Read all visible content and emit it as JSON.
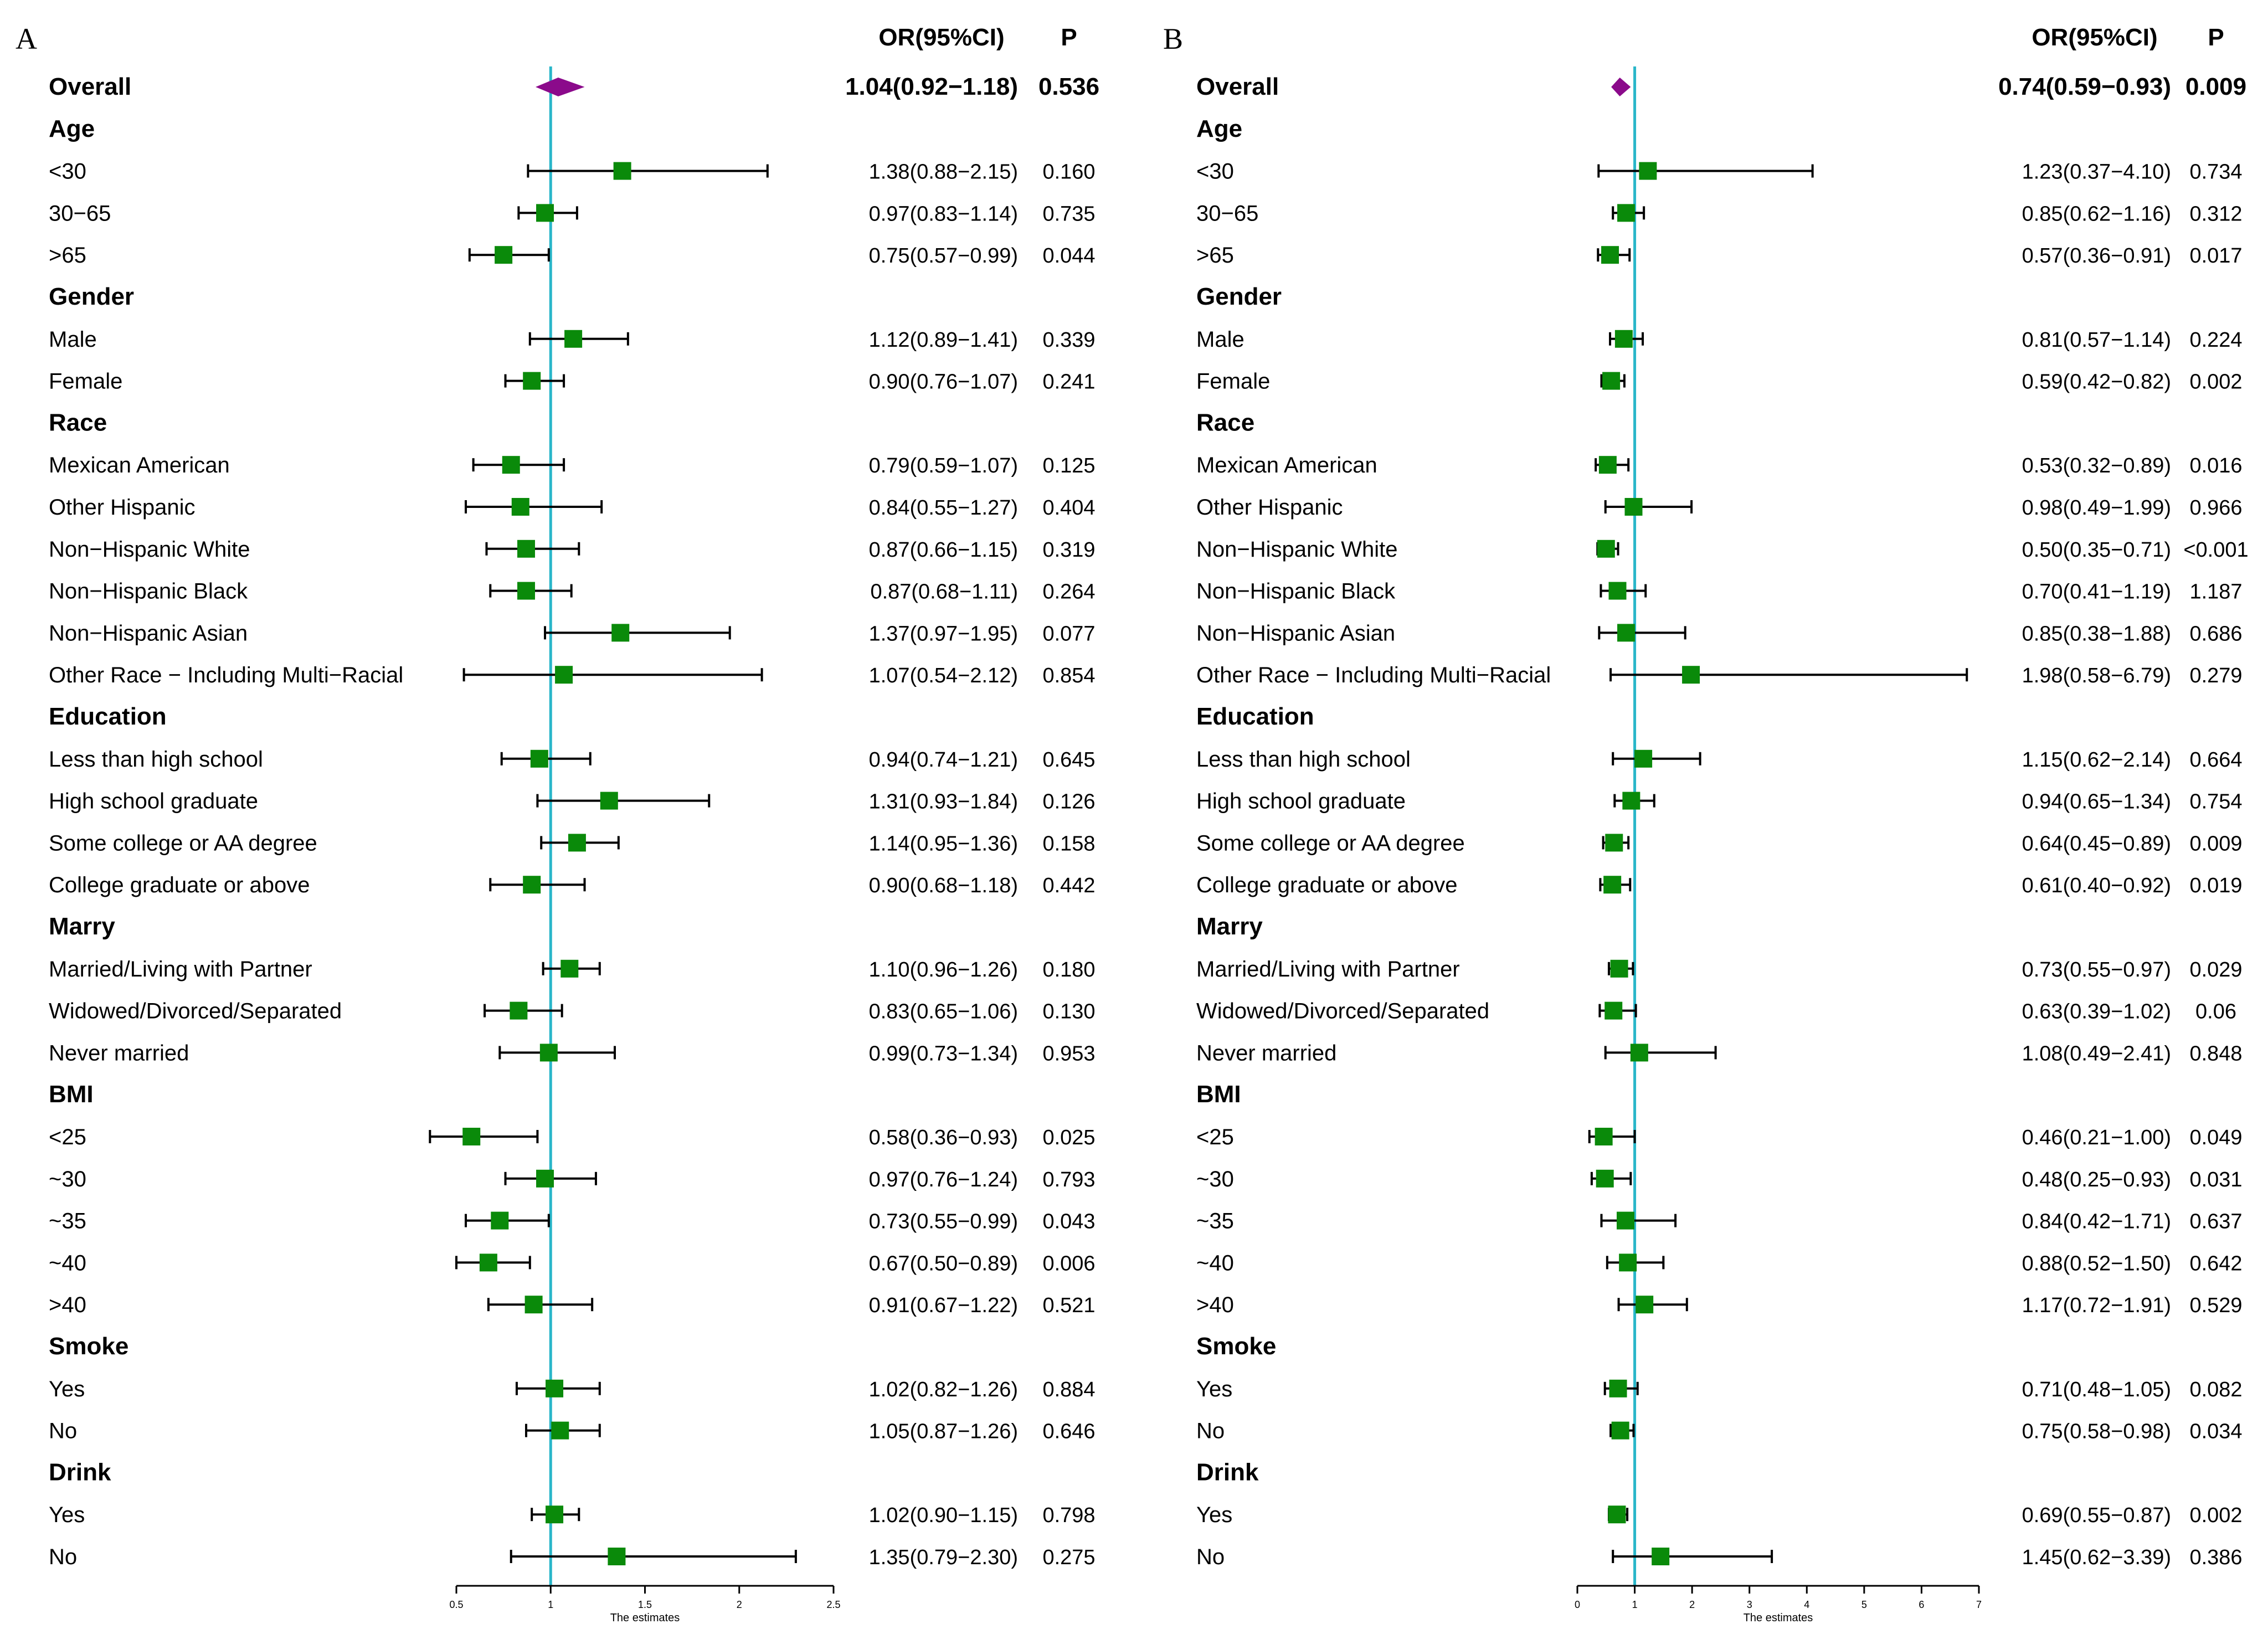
{
  "chart_data": [
    {
      "type": "forest",
      "panel": "A",
      "header_or": "OR(95%CI)",
      "header_p": "P",
      "xlabel": "The estimates",
      "xlim": [
        0.5,
        2.5
      ],
      "xticks": [
        0.5,
        1,
        1.5,
        2,
        2.5
      ],
      "xtick_labels": [
        "0.5",
        "1",
        "1.5",
        "2",
        "2.5"
      ],
      "reference": 1,
      "colors": {
        "marker": "#0a8a0a",
        "diamond": "#8b0a8b",
        "reference": "#29b6c9"
      },
      "rows": [
        {
          "label": "Overall",
          "header": true,
          "summary": true,
          "or": 1.04,
          "lo": 0.92,
          "hi": 1.18,
          "or_text": "1.04(0.92−1.18)",
          "p": "0.536"
        },
        {
          "label": "Age",
          "header": true
        },
        {
          "label": "<30",
          "or": 1.38,
          "lo": 0.88,
          "hi": 2.15,
          "or_text": "1.38(0.88−2.15)",
          "p": "0.160"
        },
        {
          "label": "30−65",
          "or": 0.97,
          "lo": 0.83,
          "hi": 1.14,
          "or_text": "0.97(0.83−1.14)",
          "p": "0.735"
        },
        {
          "label": ">65",
          "or": 0.75,
          "lo": 0.57,
          "hi": 0.99,
          "or_text": "0.75(0.57−0.99)",
          "p": "0.044"
        },
        {
          "label": "Gender",
          "header": true
        },
        {
          "label": "Male",
          "or": 1.12,
          "lo": 0.89,
          "hi": 1.41,
          "or_text": "1.12(0.89−1.41)",
          "p": "0.339"
        },
        {
          "label": "Female",
          "or": 0.9,
          "lo": 0.76,
          "hi": 1.07,
          "or_text": "0.90(0.76−1.07)",
          "p": "0.241"
        },
        {
          "label": "Race",
          "header": true
        },
        {
          "label": "Mexican American",
          "or": 0.79,
          "lo": 0.59,
          "hi": 1.07,
          "or_text": "0.79(0.59−1.07)",
          "p": "0.125"
        },
        {
          "label": "Other Hispanic",
          "or": 0.84,
          "lo": 0.55,
          "hi": 1.27,
          "or_text": "0.84(0.55−1.27)",
          "p": "0.404"
        },
        {
          "label": "Non−Hispanic White",
          "or": 0.87,
          "lo": 0.66,
          "hi": 1.15,
          "or_text": "0.87(0.66−1.15)",
          "p": "0.319"
        },
        {
          "label": "Non−Hispanic Black",
          "or": 0.87,
          "lo": 0.68,
          "hi": 1.11,
          "or_text": "0.87(0.68−1.11)",
          "p": "0.264"
        },
        {
          "label": "Non−Hispanic Asian",
          "or": 1.37,
          "lo": 0.97,
          "hi": 1.95,
          "or_text": "1.37(0.97−1.95)",
          "p": "0.077"
        },
        {
          "label": "Other Race − Including Multi−Racial",
          "or": 1.07,
          "lo": 0.54,
          "hi": 2.12,
          "or_text": "1.07(0.54−2.12)",
          "p": "0.854"
        },
        {
          "label": "Education",
          "header": true
        },
        {
          "label": "Less than high school",
          "or": 0.94,
          "lo": 0.74,
          "hi": 1.21,
          "or_text": "0.94(0.74−1.21)",
          "p": "0.645"
        },
        {
          "label": "High school graduate",
          "or": 1.31,
          "lo": 0.93,
          "hi": 1.84,
          "or_text": "1.31(0.93−1.84)",
          "p": "0.126"
        },
        {
          "label": "Some college or AA degree",
          "or": 1.14,
          "lo": 0.95,
          "hi": 1.36,
          "or_text": "1.14(0.95−1.36)",
          "p": "0.158"
        },
        {
          "label": "College graduate or above",
          "or": 0.9,
          "lo": 0.68,
          "hi": 1.18,
          "or_text": "0.90(0.68−1.18)",
          "p": "0.442"
        },
        {
          "label": "Marry",
          "header": true
        },
        {
          "label": "Married/Living with Partner",
          "or": 1.1,
          "lo": 0.96,
          "hi": 1.26,
          "or_text": "1.10(0.96−1.26)",
          "p": "0.180"
        },
        {
          "label": "Widowed/Divorced/Separated",
          "or": 0.83,
          "lo": 0.65,
          "hi": 1.06,
          "or_text": "0.83(0.65−1.06)",
          "p": "0.130"
        },
        {
          "label": "Never married",
          "or": 0.99,
          "lo": 0.73,
          "hi": 1.34,
          "or_text": "0.99(0.73−1.34)",
          "p": "0.953"
        },
        {
          "label": "BMI",
          "header": true
        },
        {
          "label": "<25",
          "or": 0.58,
          "lo": 0.36,
          "hi": 0.93,
          "or_text": "0.58(0.36−0.93)",
          "p": "0.025"
        },
        {
          "label": "~30",
          "or": 0.97,
          "lo": 0.76,
          "hi": 1.24,
          "or_text": "0.97(0.76−1.24)",
          "p": "0.793"
        },
        {
          "label": "~35",
          "or": 0.73,
          "lo": 0.55,
          "hi": 0.99,
          "or_text": "0.73(0.55−0.99)",
          "p": "0.043"
        },
        {
          "label": "~40",
          "or": 0.67,
          "lo": 0.5,
          "hi": 0.89,
          "or_text": "0.67(0.50−0.89)",
          "p": "0.006"
        },
        {
          "label": ">40",
          "or": 0.91,
          "lo": 0.67,
          "hi": 1.22,
          "or_text": "0.91(0.67−1.22)",
          "p": "0.521"
        },
        {
          "label": "Smoke",
          "header": true
        },
        {
          "label": "Yes",
          "or": 1.02,
          "lo": 0.82,
          "hi": 1.26,
          "or_text": "1.02(0.82−1.26)",
          "p": "0.884"
        },
        {
          "label": "No",
          "or": 1.05,
          "lo": 0.87,
          "hi": 1.26,
          "or_text": "1.05(0.87−1.26)",
          "p": "0.646"
        },
        {
          "label": "Drink",
          "header": true
        },
        {
          "label": "Yes",
          "or": 1.02,
          "lo": 0.9,
          "hi": 1.15,
          "or_text": "1.02(0.90−1.15)",
          "p": "0.798"
        },
        {
          "label": "No",
          "or": 1.35,
          "lo": 0.79,
          "hi": 2.3,
          "or_text": "1.35(0.79−2.30)",
          "p": "0.275"
        }
      ]
    },
    {
      "type": "forest",
      "panel": "B",
      "header_or": "OR(95%CI)",
      "header_p": "P",
      "xlabel": "The estimates",
      "xlim": [
        0,
        7
      ],
      "xticks": [
        0,
        1,
        2,
        3,
        4,
        5,
        6,
        7
      ],
      "xtick_labels": [
        "0",
        "1",
        "2",
        "3",
        "4",
        "5",
        "6",
        "7"
      ],
      "reference": 1,
      "colors": {
        "marker": "#0a8a0a",
        "diamond": "#8b0a8b",
        "reference": "#29b6c9"
      },
      "rows": [
        {
          "label": "Overall",
          "header": true,
          "summary": true,
          "or": 0.74,
          "lo": 0.59,
          "hi": 0.93,
          "or_text": "0.74(0.59−0.93)",
          "p": "0.009"
        },
        {
          "label": "Age",
          "header": true
        },
        {
          "label": "<30",
          "or": 1.23,
          "lo": 0.37,
          "hi": 4.1,
          "or_text": "1.23(0.37−4.10)",
          "p": "0.734"
        },
        {
          "label": "30−65",
          "or": 0.85,
          "lo": 0.62,
          "hi": 1.16,
          "or_text": "0.85(0.62−1.16)",
          "p": "0.312"
        },
        {
          "label": ">65",
          "or": 0.57,
          "lo": 0.36,
          "hi": 0.91,
          "or_text": "0.57(0.36−0.91)",
          "p": "0.017"
        },
        {
          "label": "Gender",
          "header": true
        },
        {
          "label": "Male",
          "or": 0.81,
          "lo": 0.57,
          "hi": 1.14,
          "or_text": "0.81(0.57−1.14)",
          "p": "0.224"
        },
        {
          "label": "Female",
          "or": 0.59,
          "lo": 0.42,
          "hi": 0.82,
          "or_text": "0.59(0.42−0.82)",
          "p": "0.002"
        },
        {
          "label": "Race",
          "header": true
        },
        {
          "label": "Mexican American",
          "or": 0.53,
          "lo": 0.32,
          "hi": 0.89,
          "or_text": "0.53(0.32−0.89)",
          "p": "0.016"
        },
        {
          "label": "Other Hispanic",
          "or": 0.98,
          "lo": 0.49,
          "hi": 1.99,
          "or_text": "0.98(0.49−1.99)",
          "p": "0.966"
        },
        {
          "label": "Non−Hispanic White",
          "or": 0.5,
          "lo": 0.35,
          "hi": 0.71,
          "or_text": "0.50(0.35−0.71)",
          "p": "<0.001"
        },
        {
          "label": "Non−Hispanic Black",
          "or": 0.7,
          "lo": 0.41,
          "hi": 1.19,
          "or_text": "0.70(0.41−1.19)",
          "p": "1.187"
        },
        {
          "label": "Non−Hispanic Asian",
          "or": 0.85,
          "lo": 0.38,
          "hi": 1.88,
          "or_text": "0.85(0.38−1.88)",
          "p": "0.686"
        },
        {
          "label": "Other Race − Including Multi−Racial",
          "or": 1.98,
          "lo": 0.58,
          "hi": 6.79,
          "or_text": "1.98(0.58−6.79)",
          "p": "0.279"
        },
        {
          "label": "Education",
          "header": true
        },
        {
          "label": "Less than high school",
          "or": 1.15,
          "lo": 0.62,
          "hi": 2.14,
          "or_text": "1.15(0.62−2.14)",
          "p": "0.664"
        },
        {
          "label": "High school graduate",
          "or": 0.94,
          "lo": 0.65,
          "hi": 1.34,
          "or_text": "0.94(0.65−1.34)",
          "p": "0.754"
        },
        {
          "label": "Some college or AA degree",
          "or": 0.64,
          "lo": 0.45,
          "hi": 0.89,
          "or_text": "0.64(0.45−0.89)",
          "p": "0.009"
        },
        {
          "label": "College graduate or above",
          "or": 0.61,
          "lo": 0.4,
          "hi": 0.92,
          "or_text": "0.61(0.40−0.92)",
          "p": "0.019"
        },
        {
          "label": "Marry",
          "header": true
        },
        {
          "label": "Married/Living with Partner",
          "or": 0.73,
          "lo": 0.55,
          "hi": 0.97,
          "or_text": "0.73(0.55−0.97)",
          "p": "0.029"
        },
        {
          "label": "Widowed/Divorced/Separated",
          "or": 0.63,
          "lo": 0.39,
          "hi": 1.02,
          "or_text": "0.63(0.39−1.02)",
          "p": "0.06"
        },
        {
          "label": "Never married",
          "or": 1.08,
          "lo": 0.49,
          "hi": 2.41,
          "or_text": "1.08(0.49−2.41)",
          "p": "0.848"
        },
        {
          "label": "BMI",
          "header": true
        },
        {
          "label": "<25",
          "or": 0.46,
          "lo": 0.21,
          "hi": 1.0,
          "or_text": "0.46(0.21−1.00)",
          "p": "0.049"
        },
        {
          "label": "~30",
          "or": 0.48,
          "lo": 0.25,
          "hi": 0.93,
          "or_text": "0.48(0.25−0.93)",
          "p": "0.031"
        },
        {
          "label": "~35",
          "or": 0.84,
          "lo": 0.42,
          "hi": 1.71,
          "or_text": "0.84(0.42−1.71)",
          "p": "0.637"
        },
        {
          "label": "~40",
          "or": 0.88,
          "lo": 0.52,
          "hi": 1.5,
          "or_text": "0.88(0.52−1.50)",
          "p": "0.642"
        },
        {
          "label": ">40",
          "or": 1.17,
          "lo": 0.72,
          "hi": 1.91,
          "or_text": "1.17(0.72−1.91)",
          "p": "0.529"
        },
        {
          "label": "Smoke",
          "header": true
        },
        {
          "label": "Yes",
          "or": 0.71,
          "lo": 0.48,
          "hi": 1.05,
          "or_text": "0.71(0.48−1.05)",
          "p": "0.082"
        },
        {
          "label": "No",
          "or": 0.75,
          "lo": 0.58,
          "hi": 0.98,
          "or_text": "0.75(0.58−0.98)",
          "p": "0.034"
        },
        {
          "label": "Drink",
          "header": true
        },
        {
          "label": "Yes",
          "or": 0.69,
          "lo": 0.55,
          "hi": 0.87,
          "or_text": "0.69(0.55−0.87)",
          "p": "0.002"
        },
        {
          "label": "No",
          "or": 1.45,
          "lo": 0.62,
          "hi": 3.39,
          "or_text": "1.45(0.62−3.39)",
          "p": "0.386"
        }
      ]
    }
  ]
}
